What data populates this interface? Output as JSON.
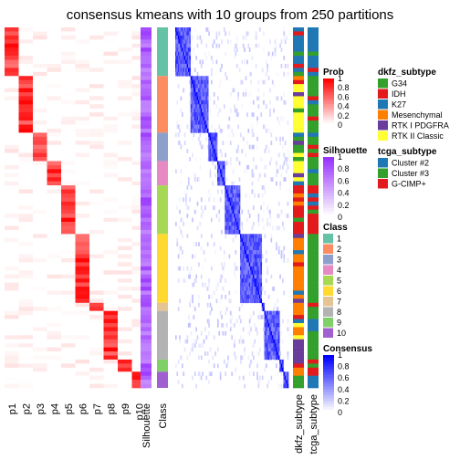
{
  "title": "consensus kmeans with 10 groups from 250 partitions",
  "chart_data": {
    "type": "heatmap",
    "columns": {
      "prob": [
        "p1",
        "p2",
        "p3",
        "p4",
        "p5",
        "p6",
        "p7",
        "p8",
        "p9",
        "p10"
      ],
      "silhouette": "Silhouette",
      "class": "Class",
      "dkfz": "dkfz_subtype",
      "tcga": "tcga_subtype"
    },
    "groups": [
      {
        "class": "1",
        "rows": 12,
        "color": "#66C2A5"
      },
      {
        "class": "2",
        "rows": 14,
        "color": "#FC8D62"
      },
      {
        "class": "3",
        "rows": 7,
        "color": "#8DA0CB"
      },
      {
        "class": "4",
        "rows": 6,
        "color": "#E78AC3"
      },
      {
        "class": "5",
        "rows": 12,
        "color": "#A6D854"
      },
      {
        "class": "6",
        "rows": 17,
        "color": "#FFD92F"
      },
      {
        "class": "7",
        "rows": 2,
        "color": "#E5C494"
      },
      {
        "class": "8",
        "rows": 12,
        "color": "#B3B3B3"
      },
      {
        "class": "9",
        "rows": 3,
        "color": "#80D068"
      },
      {
        "class": "10",
        "rows": 4,
        "color": "#A060D0"
      }
    ],
    "legends": {
      "prob": {
        "title": "Prob",
        "ticks": [
          "1",
          "0.8",
          "0.6",
          "0.4",
          "0.2",
          "0"
        ],
        "low": "#FFFFFF",
        "high": "#FF0000"
      },
      "silhouette": {
        "title": "Silhouette",
        "ticks": [
          "1",
          "0.8",
          "0.6",
          "0.4",
          "0.2",
          "0"
        ],
        "low": "#FFFFFF",
        "high": "#9933FF"
      },
      "class": {
        "title": "Class",
        "items": [
          "1",
          "2",
          "3",
          "4",
          "5",
          "6",
          "7",
          "8",
          "9",
          "10"
        ]
      },
      "consensus": {
        "title": "Consensus",
        "ticks": [
          "1",
          "0.8",
          "0.6",
          "0.4",
          "0.2",
          "0"
        ],
        "low": "#FFFFFF",
        "high": "#0000FF"
      },
      "dkfz": {
        "title": "dkfz_subtype",
        "items": [
          {
            "label": "G34",
            "color": "#33A02C"
          },
          {
            "label": "IDH",
            "color": "#E31A1C"
          },
          {
            "label": "K27",
            "color": "#1F78B4"
          },
          {
            "label": "Mesenchymal",
            "color": "#FF7F00"
          },
          {
            "label": "RTK I PDGFRA",
            "color": "#6A3D9A"
          },
          {
            "label": "RTK II Classic",
            "color": "#FFFF33"
          }
        ]
      },
      "tcga": {
        "title": "tcga_subtype",
        "items": [
          {
            "label": "Cluster #2",
            "color": "#1F78B4"
          },
          {
            "label": "Cluster #3",
            "color": "#33A02C"
          },
          {
            "label": "G-CIMP+",
            "color": "#E31A1C"
          }
        ]
      }
    }
  }
}
